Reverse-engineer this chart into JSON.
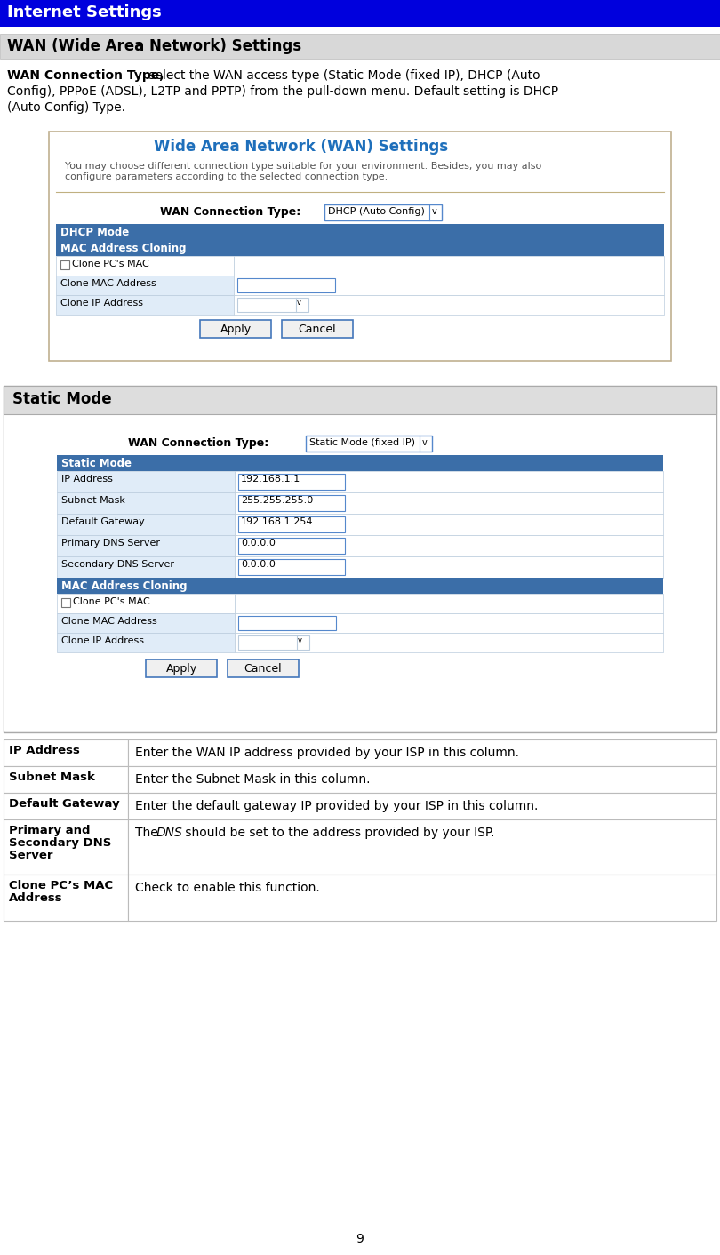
{
  "title_bar_text": "Internet Settings",
  "title_bar_bg": "#0000DD",
  "title_bar_fg": "#FFFFFF",
  "section_header_text": "WAN (Wide Area Network) Settings",
  "section_header_bg": "#D8D8D8",
  "wan_title_text": "Wide Area Network (WAN) Settings",
  "wan_title_color": "#1E6FBB",
  "wan_subtitle_text": "You may choose different connection type suitable for your environment. Besides, you may also\nconfigure parameters according to the selected connection type.",
  "dhcp_header_bg": "#3B6EA8",
  "dhcp_header_text": "DHCP Mode",
  "mac_clone_header_text": "MAC Address Cloning",
  "wan_conn_label": "WAN Connection Type:",
  "dhcp_dropdown_text": "DHCP (Auto Config)",
  "static_dropdown_text": "Static Mode (fixed IP)",
  "clone_pc_mac_text": "Clone PC's MAC",
  "clone_mac_addr_text": "Clone MAC Address",
  "clone_ip_addr_text": "Clone IP Address",
  "apply_btn_text": "Apply",
  "cancel_btn_text": "Cancel",
  "static_mode_box_text": "Static Mode",
  "static_mode_header_text": "Static Mode",
  "ip_address_label": "IP Address",
  "ip_address_val": "192.168.1.1",
  "subnet_mask_label": "Subnet Mask",
  "subnet_mask_val": "255.255.255.0",
  "default_gw_label": "Default Gateway",
  "default_gw_val": "192.168.1.254",
  "primary_dns_label": "Primary DNS Server",
  "primary_dns_val": "0.0.0.0",
  "secondary_dns_label": "Secondary DNS Server",
  "secondary_dns_val": "0.0.0.0",
  "table_rows": [
    {
      "label": "IP Address",
      "text": "Enter the WAN IP address provided by your ISP in this column."
    },
    {
      "label": "Subnet Mask",
      "text": "Enter the Subnet Mask in this column."
    },
    {
      "label": "Default Gateway",
      "text": "Enter the default gateway IP provided by your ISP in this column."
    },
    {
      "label": "Primary and\nSecondary DNS\nServer",
      "text": "The DNS should be set to the address provided by your ISP.",
      "dns_italic": true
    },
    {
      "label": "Clone PC’s MAC\nAddress",
      "text": "Check to enable this function."
    }
  ],
  "page_number": "9",
  "light_blue_row": "#E0ECF8",
  "form_border_color": "#C0B090",
  "static_box_border": "#AAAAAA",
  "table_border": "#BBBBBB"
}
